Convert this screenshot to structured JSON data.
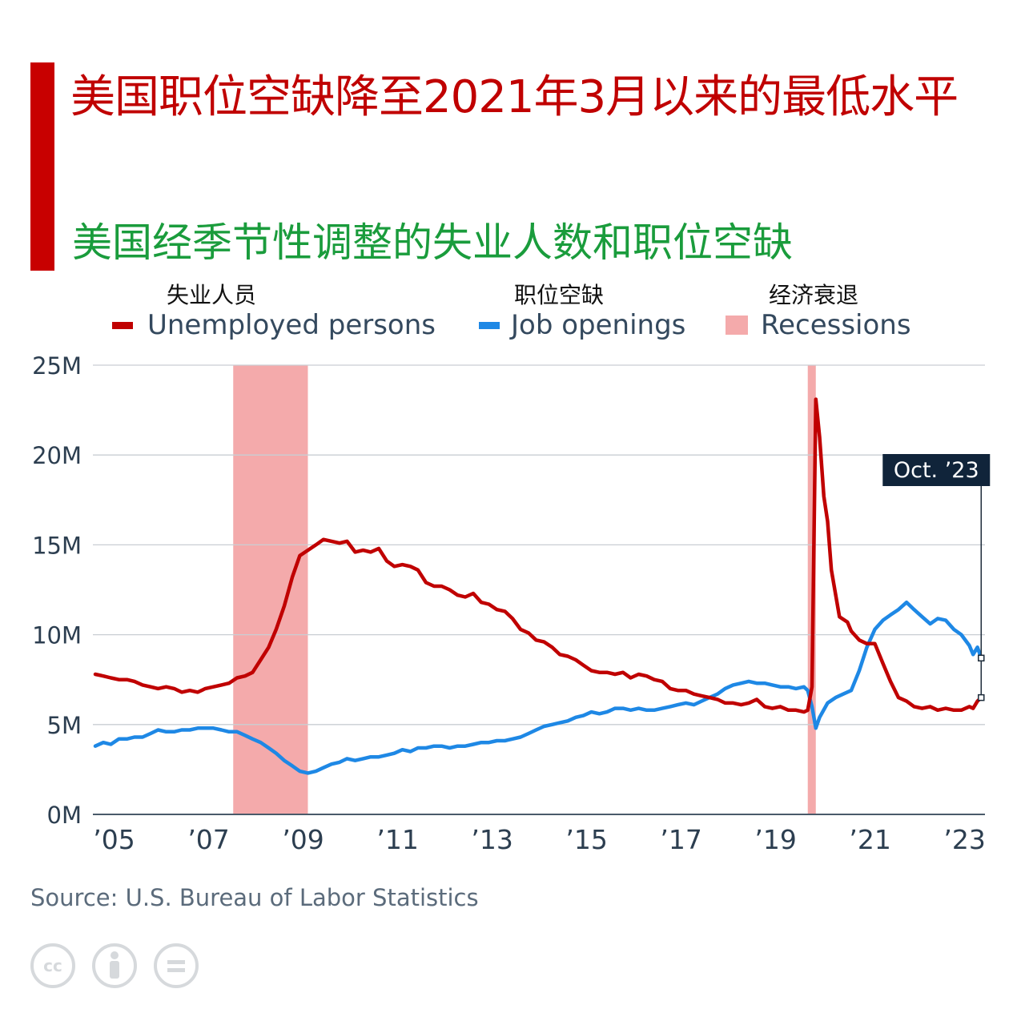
{
  "header": {
    "title": "美国职位空缺降至2021年3月以来的最低水平",
    "subtitle": "美国经季节性调整的失业人数和职位空缺",
    "accent_color": "#c80000"
  },
  "legend": {
    "items": [
      {
        "cn_label": "失业人员",
        "label": "Unemployed persons",
        "color": "#c00000",
        "kind": "line"
      },
      {
        "cn_label": "职位空缺",
        "label": "Job openings",
        "color": "#1e88e5",
        "kind": "line"
      },
      {
        "cn_label": "经济衰退",
        "label": "Recessions",
        "color": "#f4aaab",
        "kind": "box"
      }
    ]
  },
  "chart_data": {
    "type": "line",
    "y_unit": "M",
    "ylim": [
      0,
      25
    ],
    "y_ticks": [
      "25M",
      "20M",
      "15M",
      "10M",
      "5M",
      "0M"
    ],
    "y_tick_values": [
      25,
      20,
      15,
      10,
      5,
      0
    ],
    "x_ticks": [
      "’05",
      "’07",
      "’09",
      "’11",
      "’13",
      "’15",
      "’17",
      "’19",
      "’21",
      "’23"
    ],
    "x_tick_years": [
      2005.4,
      2007.4,
      2009.4,
      2011.4,
      2013.4,
      2015.4,
      2017.4,
      2019.4,
      2021.4,
      2023.4
    ],
    "xlim": [
      2004.95,
      2023.83
    ],
    "grid": true,
    "recessions": [
      {
        "start": 2007.92,
        "end": 2009.5
      },
      {
        "start": 2020.08,
        "end": 2020.25
      }
    ],
    "annotation": {
      "label": "Oct. ’23",
      "x": 2023.75
    },
    "series": [
      {
        "name": "Unemployed persons",
        "color": "#c00000",
        "points": [
          [
            2005.0,
            7.8
          ],
          [
            2005.17,
            7.7
          ],
          [
            2005.33,
            7.6
          ],
          [
            2005.5,
            7.5
          ],
          [
            2005.67,
            7.5
          ],
          [
            2005.83,
            7.4
          ],
          [
            2006.0,
            7.2
          ],
          [
            2006.17,
            7.1
          ],
          [
            2006.33,
            7.0
          ],
          [
            2006.5,
            7.1
          ],
          [
            2006.67,
            7.0
          ],
          [
            2006.83,
            6.8
          ],
          [
            2007.0,
            6.9
          ],
          [
            2007.17,
            6.8
          ],
          [
            2007.33,
            7.0
          ],
          [
            2007.5,
            7.1
          ],
          [
            2007.67,
            7.2
          ],
          [
            2007.83,
            7.3
          ],
          [
            2008.0,
            7.6
          ],
          [
            2008.17,
            7.7
          ],
          [
            2008.33,
            7.9
          ],
          [
            2008.5,
            8.6
          ],
          [
            2008.67,
            9.3
          ],
          [
            2008.83,
            10.3
          ],
          [
            2009.0,
            11.6
          ],
          [
            2009.17,
            13.2
          ],
          [
            2009.33,
            14.4
          ],
          [
            2009.5,
            14.7
          ],
          [
            2009.67,
            15.0
          ],
          [
            2009.83,
            15.3
          ],
          [
            2010.0,
            15.2
          ],
          [
            2010.17,
            15.1
          ],
          [
            2010.33,
            15.2
          ],
          [
            2010.5,
            14.6
          ],
          [
            2010.67,
            14.7
          ],
          [
            2010.83,
            14.6
          ],
          [
            2011.0,
            14.8
          ],
          [
            2011.17,
            14.1
          ],
          [
            2011.33,
            13.8
          ],
          [
            2011.5,
            13.9
          ],
          [
            2011.67,
            13.8
          ],
          [
            2011.83,
            13.6
          ],
          [
            2012.0,
            12.9
          ],
          [
            2012.17,
            12.7
          ],
          [
            2012.33,
            12.7
          ],
          [
            2012.5,
            12.5
          ],
          [
            2012.67,
            12.2
          ],
          [
            2012.83,
            12.1
          ],
          [
            2013.0,
            12.3
          ],
          [
            2013.17,
            11.8
          ],
          [
            2013.33,
            11.7
          ],
          [
            2013.5,
            11.4
          ],
          [
            2013.67,
            11.3
          ],
          [
            2013.83,
            10.9
          ],
          [
            2014.0,
            10.3
          ],
          [
            2014.17,
            10.1
          ],
          [
            2014.33,
            9.7
          ],
          [
            2014.5,
            9.6
          ],
          [
            2014.67,
            9.3
          ],
          [
            2014.83,
            8.9
          ],
          [
            2015.0,
            8.8
          ],
          [
            2015.17,
            8.6
          ],
          [
            2015.33,
            8.3
          ],
          [
            2015.5,
            8.0
          ],
          [
            2015.67,
            7.9
          ],
          [
            2015.83,
            7.9
          ],
          [
            2016.0,
            7.8
          ],
          [
            2016.17,
            7.9
          ],
          [
            2016.33,
            7.6
          ],
          [
            2016.5,
            7.8
          ],
          [
            2016.67,
            7.7
          ],
          [
            2016.83,
            7.5
          ],
          [
            2017.0,
            7.4
          ],
          [
            2017.17,
            7.0
          ],
          [
            2017.33,
            6.9
          ],
          [
            2017.5,
            6.9
          ],
          [
            2017.67,
            6.7
          ],
          [
            2017.83,
            6.6
          ],
          [
            2018.0,
            6.5
          ],
          [
            2018.17,
            6.4
          ],
          [
            2018.33,
            6.2
          ],
          [
            2018.5,
            6.2
          ],
          [
            2018.67,
            6.1
          ],
          [
            2018.83,
            6.2
          ],
          [
            2019.0,
            6.4
          ],
          [
            2019.17,
            6.0
          ],
          [
            2019.33,
            5.9
          ],
          [
            2019.5,
            6.0
          ],
          [
            2019.67,
            5.8
          ],
          [
            2019.83,
            5.8
          ],
          [
            2020.0,
            5.7
          ],
          [
            2020.08,
            5.8
          ],
          [
            2020.17,
            7.1
          ],
          [
            2020.25,
            23.1
          ],
          [
            2020.33,
            21.0
          ],
          [
            2020.42,
            17.7
          ],
          [
            2020.5,
            16.3
          ],
          [
            2020.58,
            13.6
          ],
          [
            2020.75,
            11.0
          ],
          [
            2020.92,
            10.7
          ],
          [
            2021.0,
            10.2
          ],
          [
            2021.17,
            9.7
          ],
          [
            2021.33,
            9.5
          ],
          [
            2021.5,
            9.5
          ],
          [
            2021.67,
            8.4
          ],
          [
            2021.83,
            7.4
          ],
          [
            2022.0,
            6.5
          ],
          [
            2022.17,
            6.3
          ],
          [
            2022.33,
            6.0
          ],
          [
            2022.5,
            5.9
          ],
          [
            2022.67,
            6.0
          ],
          [
            2022.83,
            5.8
          ],
          [
            2023.0,
            5.9
          ],
          [
            2023.17,
            5.8
          ],
          [
            2023.33,
            5.8
          ],
          [
            2023.5,
            6.0
          ],
          [
            2023.58,
            5.9
          ],
          [
            2023.67,
            6.3
          ],
          [
            2023.75,
            6.5
          ]
        ]
      },
      {
        "name": "Job openings",
        "color": "#1e88e5",
        "points": [
          [
            2005.0,
            3.8
          ],
          [
            2005.17,
            4.0
          ],
          [
            2005.33,
            3.9
          ],
          [
            2005.5,
            4.2
          ],
          [
            2005.67,
            4.2
          ],
          [
            2005.83,
            4.3
          ],
          [
            2006.0,
            4.3
          ],
          [
            2006.17,
            4.5
          ],
          [
            2006.33,
            4.7
          ],
          [
            2006.5,
            4.6
          ],
          [
            2006.67,
            4.6
          ],
          [
            2006.83,
            4.7
          ],
          [
            2007.0,
            4.7
          ],
          [
            2007.17,
            4.8
          ],
          [
            2007.33,
            4.8
          ],
          [
            2007.5,
            4.8
          ],
          [
            2007.67,
            4.7
          ],
          [
            2007.83,
            4.6
          ],
          [
            2008.0,
            4.6
          ],
          [
            2008.17,
            4.4
          ],
          [
            2008.33,
            4.2
          ],
          [
            2008.5,
            4.0
          ],
          [
            2008.67,
            3.7
          ],
          [
            2008.83,
            3.4
          ],
          [
            2009.0,
            3.0
          ],
          [
            2009.17,
            2.7
          ],
          [
            2009.33,
            2.4
          ],
          [
            2009.5,
            2.3
          ],
          [
            2009.67,
            2.4
          ],
          [
            2009.83,
            2.6
          ],
          [
            2010.0,
            2.8
          ],
          [
            2010.17,
            2.9
          ],
          [
            2010.33,
            3.1
          ],
          [
            2010.5,
            3.0
          ],
          [
            2010.67,
            3.1
          ],
          [
            2010.83,
            3.2
          ],
          [
            2011.0,
            3.2
          ],
          [
            2011.17,
            3.3
          ],
          [
            2011.33,
            3.4
          ],
          [
            2011.5,
            3.6
          ],
          [
            2011.67,
            3.5
          ],
          [
            2011.83,
            3.7
          ],
          [
            2012.0,
            3.7
          ],
          [
            2012.17,
            3.8
          ],
          [
            2012.33,
            3.8
          ],
          [
            2012.5,
            3.7
          ],
          [
            2012.67,
            3.8
          ],
          [
            2012.83,
            3.8
          ],
          [
            2013.0,
            3.9
          ],
          [
            2013.17,
            4.0
          ],
          [
            2013.33,
            4.0
          ],
          [
            2013.5,
            4.1
          ],
          [
            2013.67,
            4.1
          ],
          [
            2013.83,
            4.2
          ],
          [
            2014.0,
            4.3
          ],
          [
            2014.17,
            4.5
          ],
          [
            2014.33,
            4.7
          ],
          [
            2014.5,
            4.9
          ],
          [
            2014.67,
            5.0
          ],
          [
            2014.83,
            5.1
          ],
          [
            2015.0,
            5.2
          ],
          [
            2015.17,
            5.4
          ],
          [
            2015.33,
            5.5
          ],
          [
            2015.5,
            5.7
          ],
          [
            2015.67,
            5.6
          ],
          [
            2015.83,
            5.7
          ],
          [
            2016.0,
            5.9
          ],
          [
            2016.17,
            5.9
          ],
          [
            2016.33,
            5.8
          ],
          [
            2016.5,
            5.9
          ],
          [
            2016.67,
            5.8
          ],
          [
            2016.83,
            5.8
          ],
          [
            2017.0,
            5.9
          ],
          [
            2017.17,
            6.0
          ],
          [
            2017.33,
            6.1
          ],
          [
            2017.5,
            6.2
          ],
          [
            2017.67,
            6.1
          ],
          [
            2017.83,
            6.3
          ],
          [
            2018.0,
            6.5
          ],
          [
            2018.17,
            6.7
          ],
          [
            2018.33,
            7.0
          ],
          [
            2018.5,
            7.2
          ],
          [
            2018.67,
            7.3
          ],
          [
            2018.83,
            7.4
          ],
          [
            2019.0,
            7.3
          ],
          [
            2019.17,
            7.3
          ],
          [
            2019.33,
            7.2
          ],
          [
            2019.5,
            7.1
          ],
          [
            2019.67,
            7.1
          ],
          [
            2019.83,
            7.0
          ],
          [
            2020.0,
            7.1
          ],
          [
            2020.08,
            6.9
          ],
          [
            2020.17,
            6.0
          ],
          [
            2020.25,
            4.8
          ],
          [
            2020.33,
            5.4
          ],
          [
            2020.5,
            6.2
          ],
          [
            2020.67,
            6.5
          ],
          [
            2020.83,
            6.7
          ],
          [
            2021.0,
            6.9
          ],
          [
            2021.17,
            8.0
          ],
          [
            2021.33,
            9.3
          ],
          [
            2021.5,
            10.3
          ],
          [
            2021.67,
            10.8
          ],
          [
            2021.83,
            11.1
          ],
          [
            2022.0,
            11.4
          ],
          [
            2022.17,
            11.8
          ],
          [
            2022.33,
            11.4
          ],
          [
            2022.5,
            11.0
          ],
          [
            2022.67,
            10.6
          ],
          [
            2022.83,
            10.9
          ],
          [
            2023.0,
            10.8
          ],
          [
            2023.17,
            10.3
          ],
          [
            2023.33,
            10.0
          ],
          [
            2023.5,
            9.4
          ],
          [
            2023.58,
            8.9
          ],
          [
            2023.67,
            9.3
          ],
          [
            2023.75,
            8.7
          ]
        ]
      }
    ]
  },
  "footer": {
    "source": "Source: U.S. Bureau of Labor Statistics",
    "license_icons": [
      "cc-icon",
      "by-icon",
      "nd-icon"
    ]
  }
}
